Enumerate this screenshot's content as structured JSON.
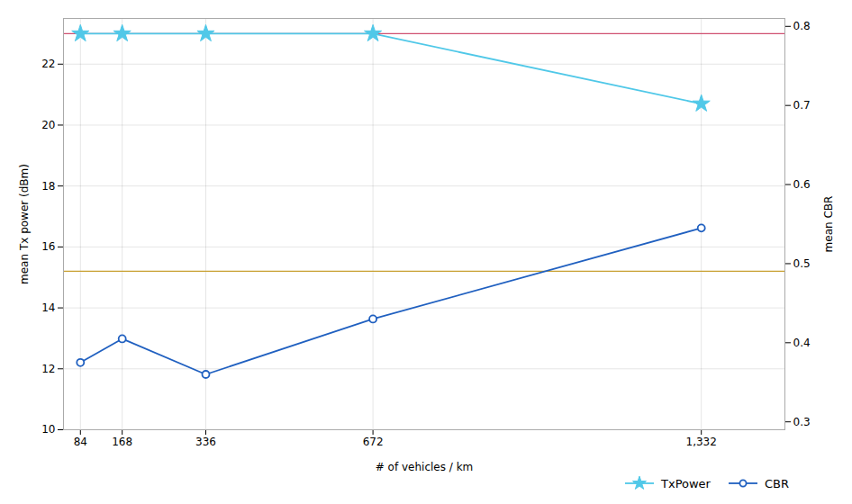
{
  "chart_data": {
    "type": "line",
    "x": [
      84,
      168,
      336,
      672,
      1332
    ],
    "xlabel": "# of vehicles / km",
    "ylabel": "mean Tx power (dBm)",
    "y2label": "mean CBR",
    "xlim": [
      50,
      1500
    ],
    "xticks": [
      84,
      168,
      336,
      672,
      1332
    ],
    "ylim": [
      10,
      23.5
    ],
    "yticks": [
      10,
      12,
      14,
      16,
      18,
      20,
      22
    ],
    "y2lim": [
      0.29,
      0.81
    ],
    "y2ticks": [
      0.3,
      0.4,
      0.5,
      0.6,
      0.7,
      0.8
    ],
    "grid": true,
    "legend": "lower right",
    "hlines": [
      {
        "value": 23.0,
        "color": "#d05070"
      },
      {
        "value": 15.2,
        "color": "#c8a030"
      },
      {
        "value": 10.0,
        "color": "#30b8a8"
      }
    ],
    "series": [
      {
        "name": "TxPower",
        "color": "#50c8e8",
        "marker": "star",
        "values": [
          23.0,
          23.0,
          23.0,
          23.0,
          20.7
        ]
      },
      {
        "name": "CBR",
        "color": "#2060c0",
        "marker": "circle",
        "axis": "y2",
        "values": [
          0.375,
          0.405,
          0.36,
          0.43,
          0.545
        ]
      }
    ]
  }
}
